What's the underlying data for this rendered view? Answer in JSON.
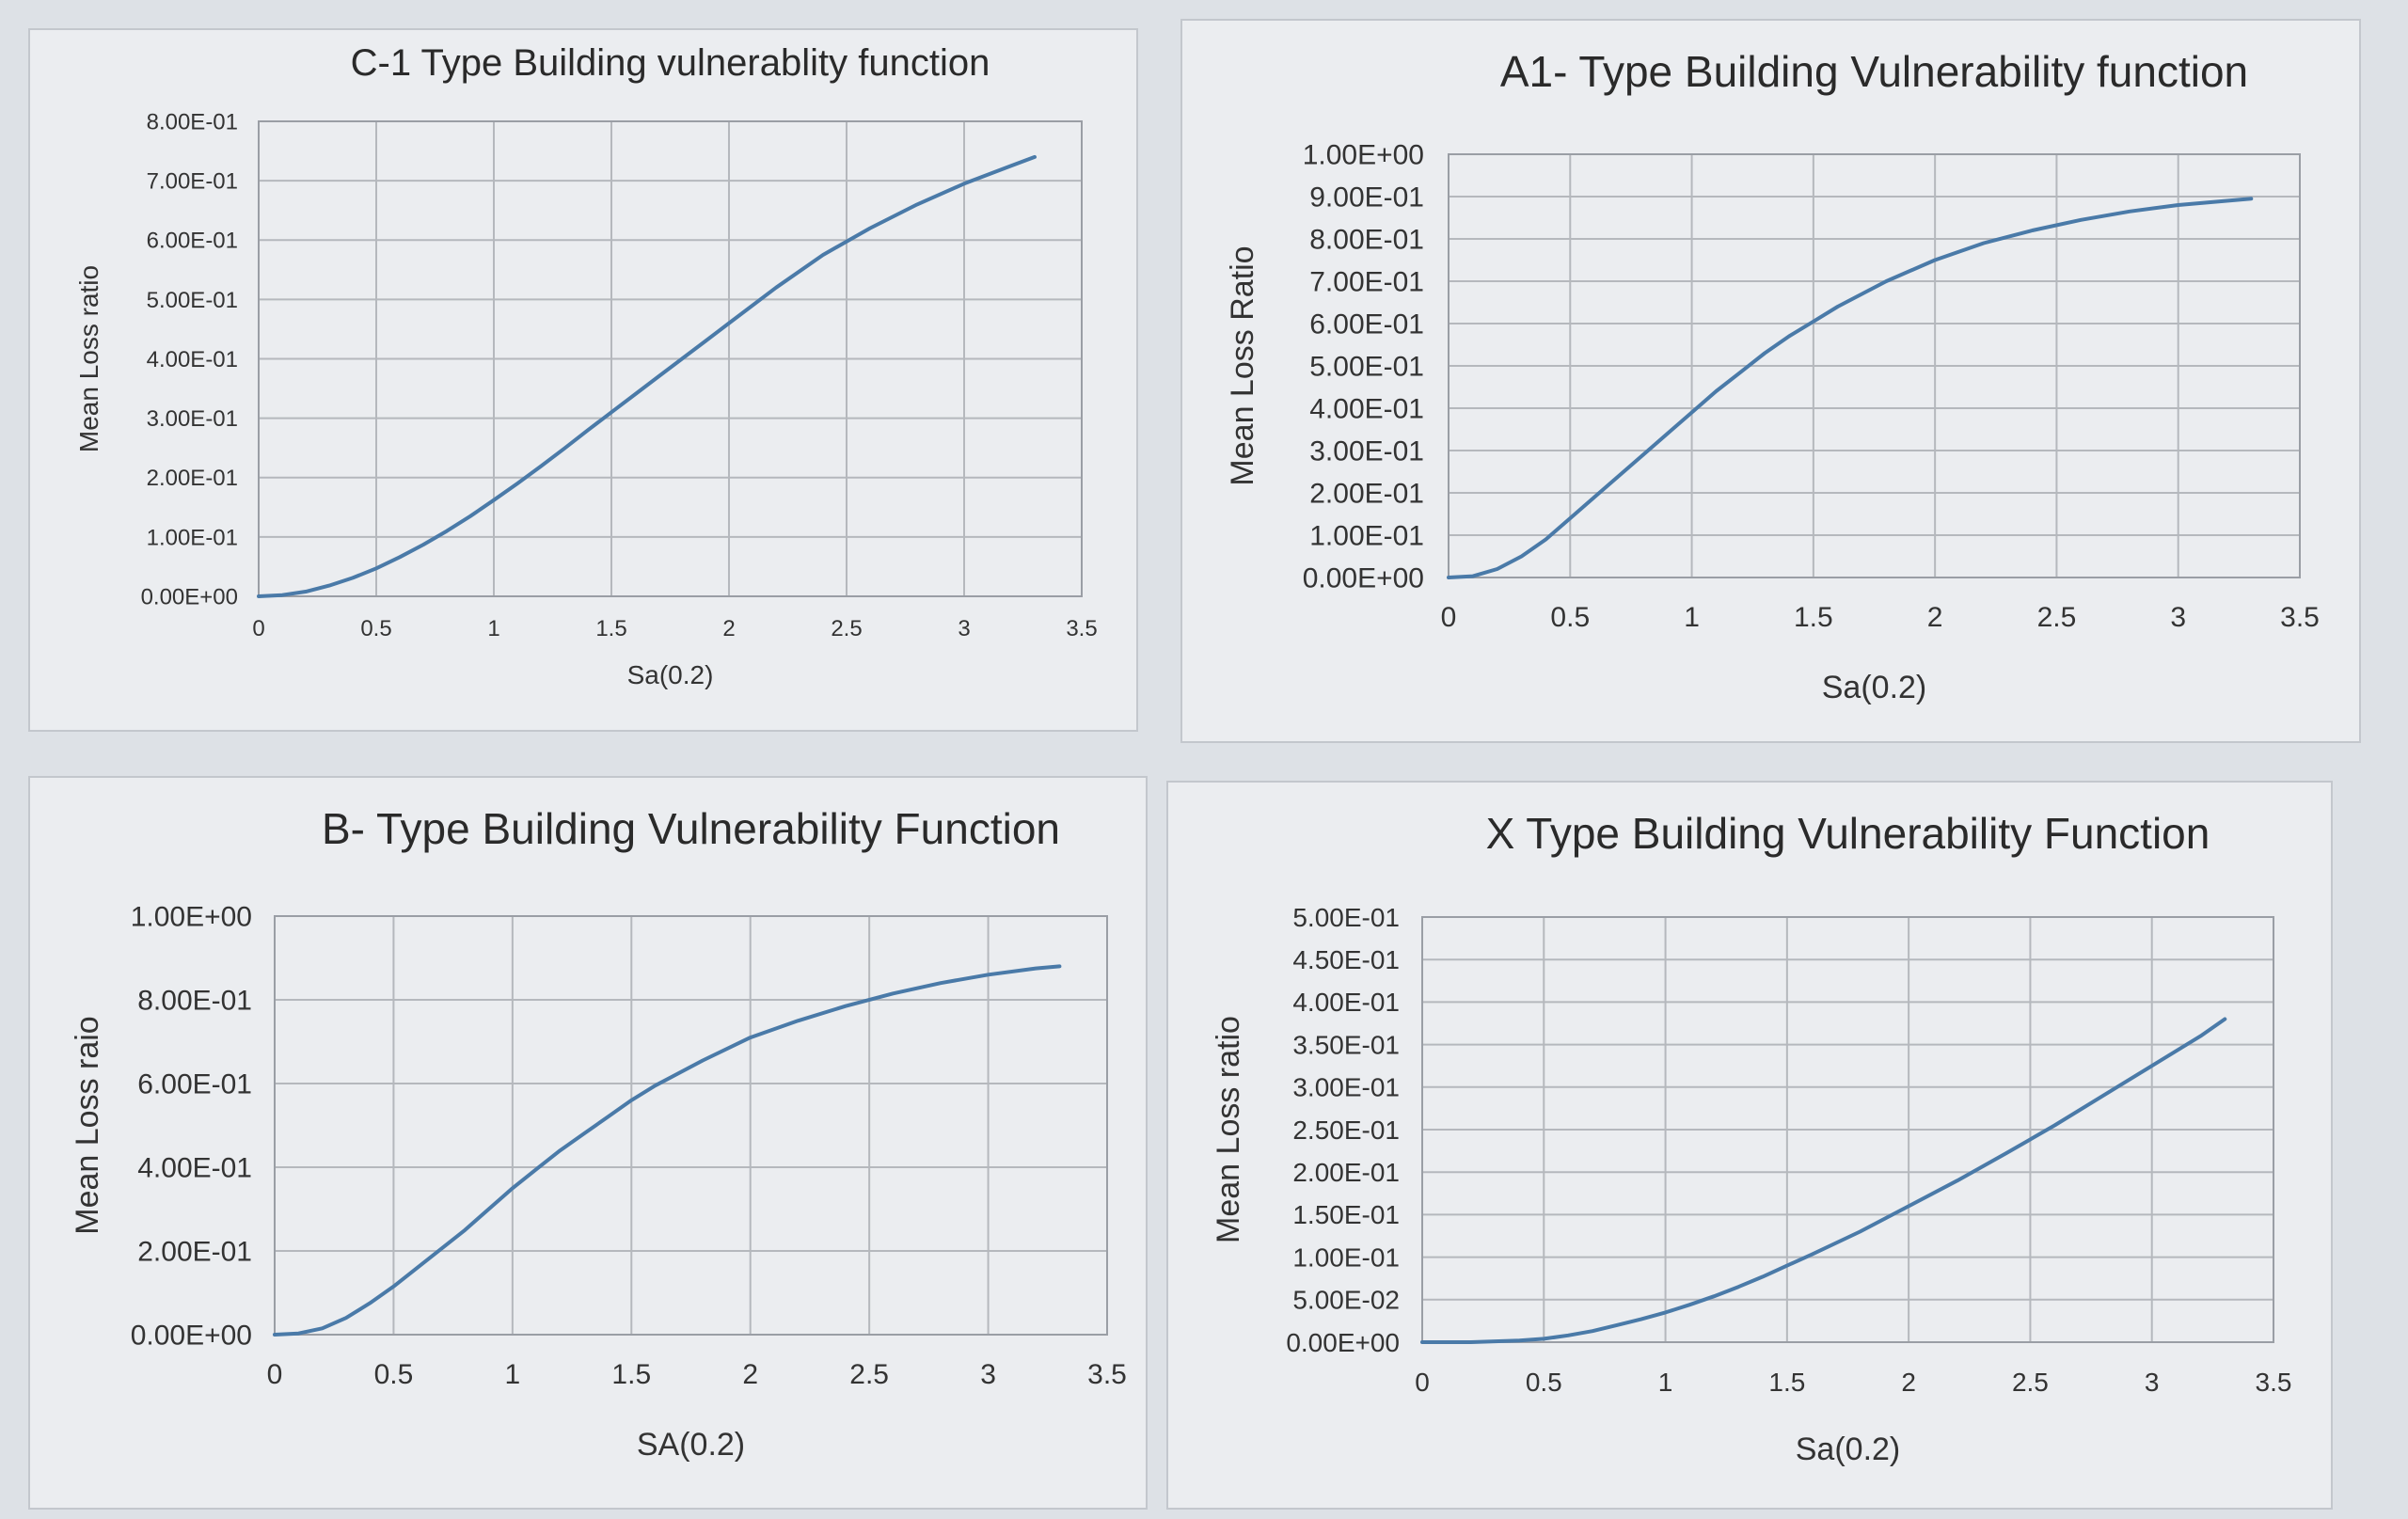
{
  "colors": {
    "line": "#4a7aa8"
  },
  "chart_data": [
    {
      "type": "line",
      "title": "C-1 Type Building vulnerablity function",
      "xlabel": "Sa(0.2)",
      "ylabel": "Mean Loss ratio",
      "xlim": [
        0,
        3.5
      ],
      "ylim": [
        0,
        0.8
      ],
      "xticks": [
        "0",
        "0.5",
        "1",
        "1.5",
        "2",
        "2.5",
        "3",
        "3.5"
      ],
      "yticks": [
        "0.00E+00",
        "1.00E-01",
        "2.00E-01",
        "3.00E-01",
        "4.00E-01",
        "5.00E-01",
        "6.00E-01",
        "7.00E-01",
        "8.00E-01"
      ],
      "grid": true,
      "legend": "none",
      "series": [
        {
          "x": [
            0,
            0.1,
            0.2,
            0.3,
            0.4,
            0.5,
            0.6,
            0.7,
            0.8,
            0.9,
            1.0,
            1.1,
            1.2,
            1.3,
            1.4,
            1.5,
            1.6,
            1.7,
            1.8,
            1.9,
            2.0,
            2.2,
            2.4,
            2.6,
            2.8,
            3.0,
            3.2,
            3.3
          ],
          "y": [
            0,
            0.002,
            0.008,
            0.018,
            0.031,
            0.047,
            0.066,
            0.087,
            0.11,
            0.135,
            0.162,
            0.19,
            0.219,
            0.249,
            0.28,
            0.31,
            0.34,
            0.37,
            0.4,
            0.43,
            0.46,
            0.52,
            0.575,
            0.62,
            0.66,
            0.695,
            0.725,
            0.74
          ]
        }
      ]
    },
    {
      "type": "line",
      "title": "A1- Type Building Vulnerability function",
      "xlabel": "Sa(0.2)",
      "ylabel": "Mean Loss Ratio",
      "xlim": [
        0,
        3.5
      ],
      "ylim": [
        0,
        1.0
      ],
      "xticks": [
        "0",
        "0.5",
        "1",
        "1.5",
        "2",
        "2.5",
        "3",
        "3.5"
      ],
      "yticks": [
        "0.00E+00",
        "1.00E-01",
        "2.00E-01",
        "3.00E-01",
        "4.00E-01",
        "5.00E-01",
        "6.00E-01",
        "7.00E-01",
        "8.00E-01",
        "9.00E-01",
        "1.00E+00"
      ],
      "grid": true,
      "legend": "none",
      "series": [
        {
          "x": [
            0,
            0.1,
            0.2,
            0.3,
            0.4,
            0.5,
            0.6,
            0.7,
            0.8,
            0.9,
            1.0,
            1.1,
            1.2,
            1.3,
            1.4,
            1.5,
            1.6,
            1.8,
            2.0,
            2.2,
            2.4,
            2.6,
            2.8,
            3.0,
            3.2,
            3.3
          ],
          "y": [
            0,
            0.003,
            0.02,
            0.05,
            0.09,
            0.14,
            0.19,
            0.24,
            0.29,
            0.34,
            0.39,
            0.44,
            0.485,
            0.53,
            0.57,
            0.605,
            0.64,
            0.7,
            0.75,
            0.79,
            0.82,
            0.845,
            0.865,
            0.88,
            0.89,
            0.895
          ]
        }
      ]
    },
    {
      "type": "line",
      "title": "B- Type Building Vulnerability Function",
      "xlabel": "SA(0.2)",
      "ylabel": "Mean Loss raio",
      "xlim": [
        0,
        3.5
      ],
      "ylim": [
        0,
        1.0
      ],
      "xticks": [
        "0",
        "0.5",
        "1",
        "1.5",
        "2",
        "2.5",
        "3",
        "3.5"
      ],
      "yticks": [
        "0.00E+00",
        "2.00E-01",
        "4.00E-01",
        "6.00E-01",
        "8.00E-01",
        "1.00E+00"
      ],
      "grid": true,
      "legend": "none",
      "series": [
        {
          "x": [
            0,
            0.1,
            0.2,
            0.3,
            0.4,
            0.5,
            0.6,
            0.7,
            0.8,
            0.9,
            1.0,
            1.1,
            1.2,
            1.3,
            1.4,
            1.5,
            1.6,
            1.8,
            2.0,
            2.2,
            2.4,
            2.6,
            2.8,
            3.0,
            3.2,
            3.3
          ],
          "y": [
            0,
            0.003,
            0.015,
            0.04,
            0.075,
            0.115,
            0.16,
            0.205,
            0.25,
            0.3,
            0.35,
            0.395,
            0.44,
            0.48,
            0.52,
            0.56,
            0.595,
            0.655,
            0.71,
            0.75,
            0.785,
            0.815,
            0.84,
            0.86,
            0.875,
            0.88
          ]
        }
      ]
    },
    {
      "type": "line",
      "title": "X Type Building Vulnerability Function",
      "xlabel": "Sa(0.2)",
      "ylabel": "Mean Loss ratio",
      "xlim": [
        0,
        3.5
      ],
      "ylim": [
        0,
        0.5
      ],
      "xticks": [
        "0",
        "0.5",
        "1",
        "1.5",
        "2",
        "2.5",
        "3",
        "3.5"
      ],
      "yticks": [
        "0.00E+00",
        "5.00E-02",
        "1.00E-01",
        "1.50E-01",
        "2.00E-01",
        "2.50E-01",
        "3.00E-01",
        "3.50E-01",
        "4.00E-01",
        "4.50E-01",
        "5.00E-01"
      ],
      "grid": true,
      "legend": "none",
      "series": [
        {
          "x": [
            0,
            0.2,
            0.4,
            0.5,
            0.6,
            0.7,
            0.8,
            0.9,
            1.0,
            1.1,
            1.2,
            1.3,
            1.4,
            1.5,
            1.6,
            1.8,
            2.0,
            2.2,
            2.4,
            2.6,
            2.8,
            3.0,
            3.2,
            3.3
          ],
          "y": [
            0,
            0.0,
            0.002,
            0.004,
            0.008,
            0.013,
            0.02,
            0.027,
            0.035,
            0.044,
            0.054,
            0.065,
            0.077,
            0.09,
            0.103,
            0.13,
            0.16,
            0.19,
            0.222,
            0.255,
            0.29,
            0.325,
            0.36,
            0.38
          ]
        }
      ]
    }
  ]
}
